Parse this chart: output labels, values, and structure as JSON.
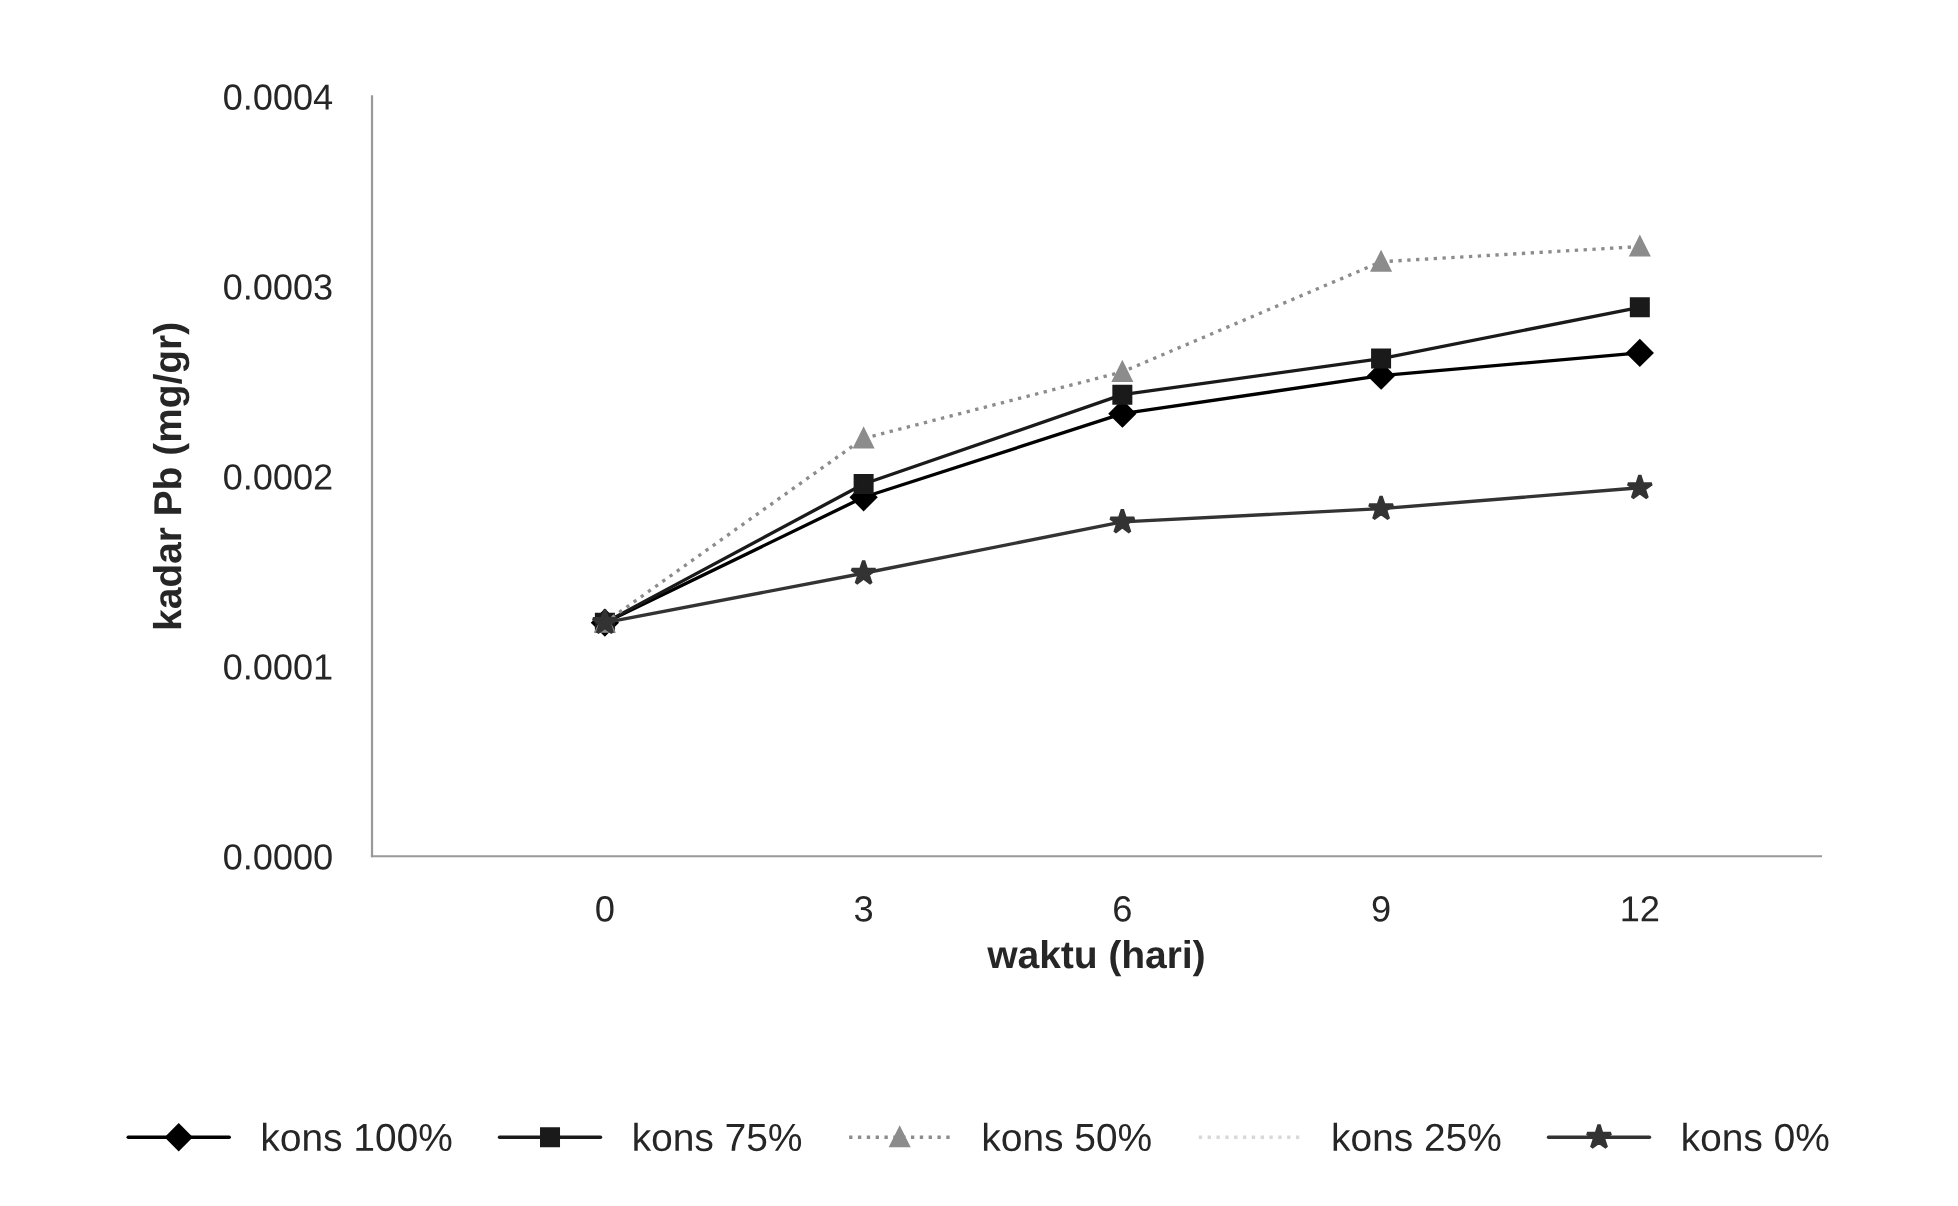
{
  "chart_data": {
    "type": "line",
    "xlabel": "waktu (hari)",
    "ylabel": "kadar Pb (mg/gr)",
    "categories": [
      "0",
      "3",
      "6",
      "9",
      "12"
    ],
    "series": [
      {
        "name": "kons 100%",
        "color": "#000000",
        "marker": "diamond",
        "line_style": "solid",
        "values": [
          0.000123,
          0.000189,
          0.000233,
          0.000253,
          0.000265
        ]
      },
      {
        "name": "kons 75%",
        "color": "#1a1a1a",
        "marker": "square",
        "line_style": "solid",
        "values": [
          0.000123,
          0.000196,
          0.000243,
          0.000262,
          0.000289
        ]
      },
      {
        "name": "kons 50%",
        "color": "#8c8c8c",
        "marker": "triangle",
        "line_style": "dotted",
        "values": [
          0.000123,
          0.00022,
          0.000255,
          0.000313,
          0.000321
        ]
      },
      {
        "name": "kons 25%",
        "color": "#d8d8d8",
        "marker": "none",
        "line_style": "dotted",
        "values": [
          null,
          null,
          null,
          null,
          null
        ]
      },
      {
        "name": "kons 0%",
        "color": "#333333",
        "marker": "star",
        "line_style": "solid",
        "values": [
          0.000123,
          0.000149,
          0.000176,
          0.000183,
          0.000194
        ]
      }
    ],
    "ylim": [
      0,
      0.0004
    ],
    "yticks": [
      {
        "value": 0,
        "label": "0.0000"
      },
      {
        "value": 0.0001,
        "label": "0.0001"
      },
      {
        "value": 0.0002,
        "label": "0.0002"
      },
      {
        "value": 0.0003,
        "label": "0.0003"
      },
      {
        "value": 0.0004,
        "label": "0.0004"
      }
    ],
    "grid": false,
    "legend": "bottom"
  }
}
